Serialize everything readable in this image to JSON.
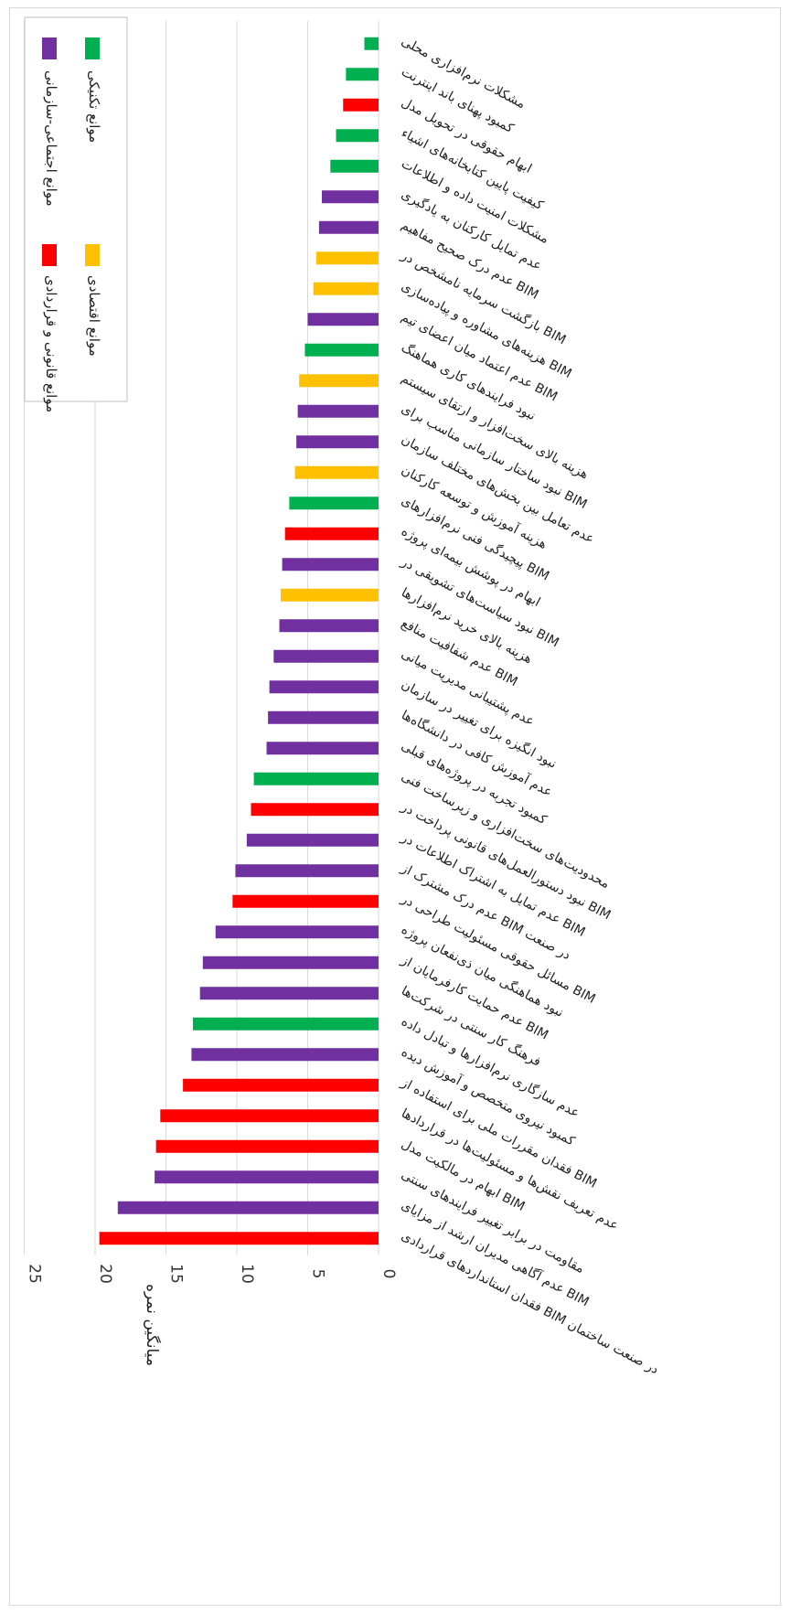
{
  "chart_data": {
    "type": "bar",
    "orientation": "horizontal",
    "ylabel": "میانگین نمره",
    "xlim": [
      0,
      25
    ],
    "xticks": [
      0,
      5,
      10,
      15,
      20,
      25
    ],
    "grid": true,
    "legend_position": "top-right",
    "legend": [
      {
        "key": "social",
        "label": "موانع اجتماعی-سازمانی",
        "color": "#7030a0"
      },
      {
        "key": "legal",
        "label": "موانع قانونی و قراردادی",
        "color": "#ff0000"
      },
      {
        "key": "technical",
        "label": "موانع تکنیکی",
        "color": "#00b050"
      },
      {
        "key": "economic",
        "label": "موانع اقتصادی",
        "color": "#ffc000"
      }
    ],
    "bars": [
      {
        "label": "فقدان استانداردهای قراردادی BIM در صنعت ساختمان",
        "value": 19.7,
        "group": "legal"
      },
      {
        "label": "عدم آگاهی مدیران ارشد از مزایای BIM",
        "value": 18.4,
        "group": "social"
      },
      {
        "label": "مقاومت در برابر تغییر فرایندهای سنتی",
        "value": 15.8,
        "group": "social"
      },
      {
        "label": "ابهام در مالکیت مدل BIM",
        "value": 15.7,
        "group": "legal"
      },
      {
        "label": "عدم تعریف نقش‌ها و مسئولیت‌ها در قراردادها",
        "value": 15.4,
        "group": "legal"
      },
      {
        "label": "فقدان مقررات ملی برای استفاده از BIM",
        "value": 13.8,
        "group": "legal"
      },
      {
        "label": "کمبود نیروی متخصص و آموزش دیده",
        "value": 13.2,
        "group": "social"
      },
      {
        "label": "عدم سازگاری نرم‌افزارها و تبادل داده",
        "value": 13.1,
        "group": "technical"
      },
      {
        "label": "فرهنگ کار سنتی در شرکت‌ها",
        "value": 12.6,
        "group": "social"
      },
      {
        "label": "عدم حمایت کارفرمایان از BIM",
        "value": 12.4,
        "group": "social"
      },
      {
        "label": "نبود هماهنگی میان ذی‌نفعان پروژه",
        "value": 11.5,
        "group": "social"
      },
      {
        "label": "مسائل حقوقی مسئولیت طراحی در BIM",
        "value": 10.3,
        "group": "legal"
      },
      {
        "label": "عدم درک مشترک از BIM در صنعت",
        "value": 10.1,
        "group": "social"
      },
      {
        "label": "عدم تمایل به اشتراک اطلاعات در BIM",
        "value": 9.3,
        "group": "social"
      },
      {
        "label": "نبود دستورالعمل‌های قانونی پرداخت در BIM",
        "value": 9.0,
        "group": "legal"
      },
      {
        "label": "محدودیت‌های سخت‌افزاری و زیرساخت فنی",
        "value": 8.8,
        "group": "technical"
      },
      {
        "label": "کمبود تجربه در پروژه‌های قبلی",
        "value": 7.9,
        "group": "social"
      },
      {
        "label": "عدم آموزش کافی در دانشگاه‌ها",
        "value": 7.8,
        "group": "social"
      },
      {
        "label": "نبود انگیزه برای تغییر در سازمان",
        "value": 7.7,
        "group": "social"
      },
      {
        "label": "عدم پشتیبانی مدیریت میانی",
        "value": 7.4,
        "group": "social"
      },
      {
        "label": "عدم شفافیت منافع BIM",
        "value": 7.0,
        "group": "social"
      },
      {
        "label": "هزینه بالای خرید نرم‌افزارها",
        "value": 6.9,
        "group": "economic"
      },
      {
        "label": "نبود سیاست‌های تشویقی در BIM",
        "value": 6.8,
        "group": "social"
      },
      {
        "label": "ابهام در پوشش بیمه‌ای پروژه",
        "value": 6.6,
        "group": "legal"
      },
      {
        "label": "پیچیدگی فنی نرم‌افزارهای BIM",
        "value": 6.3,
        "group": "technical"
      },
      {
        "label": "هزینه آموزش و توسعه کارکنان",
        "value": 5.9,
        "group": "economic"
      },
      {
        "label": "عدم تعامل بین بخش‌های مختلف سازمان",
        "value": 5.8,
        "group": "social"
      },
      {
        "label": "نبود ساختار سازمانی مناسب برای BIM",
        "value": 5.7,
        "group": "social"
      },
      {
        "label": "هزینه بالای سخت‌افزار و ارتقای سیستم",
        "value": 5.6,
        "group": "economic"
      },
      {
        "label": "نبود فرایندهای کاری هماهنگ",
        "value": 5.2,
        "group": "technical"
      },
      {
        "label": "عدم اعتماد میان اعضای تیم BIM",
        "value": 5.0,
        "group": "social"
      },
      {
        "label": "هزینه‌های مشاوره و پیاده‌سازی BIM",
        "value": 4.6,
        "group": "economic"
      },
      {
        "label": "بازگشت سرمایه نامشخص در BIM",
        "value": 4.4,
        "group": "economic"
      },
      {
        "label": "عدم درک صحیح مفاهیم BIM",
        "value": 4.2,
        "group": "social"
      },
      {
        "label": "عدم تمایل کارکنان به یادگیری",
        "value": 4.0,
        "group": "social"
      },
      {
        "label": "مشکلات امنیت داده و اطلاعات",
        "value": 3.4,
        "group": "technical"
      },
      {
        "label": "کیفیت پایین کتابخانه‌های اشیاء",
        "value": 3.0,
        "group": "technical"
      },
      {
        "label": "ابهام حقوقی در تحویل مدل",
        "value": 2.5,
        "group": "legal"
      },
      {
        "label": "کمبود پهنای باند اینترنت",
        "value": 2.3,
        "group": "technical"
      },
      {
        "label": "مشکلات نرم‌افزاری محلی",
        "value": 1.0,
        "group": "technical"
      }
    ]
  }
}
